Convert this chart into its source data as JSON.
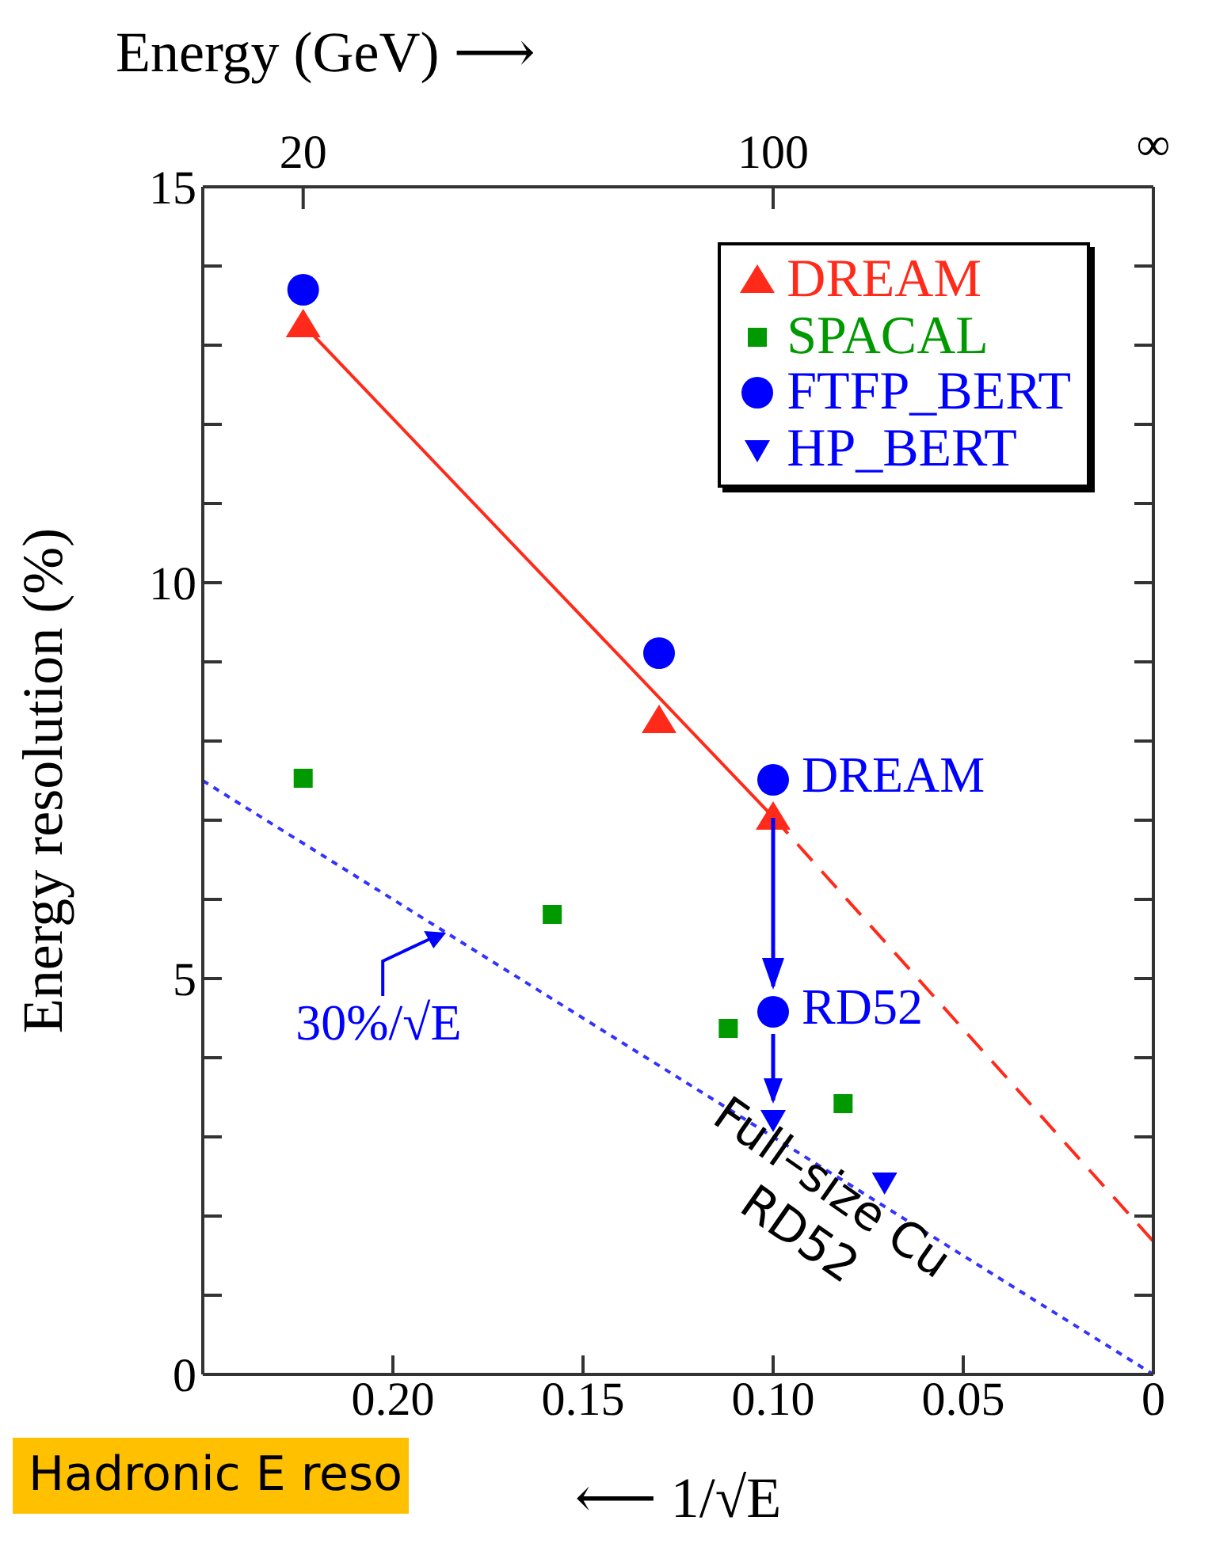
{
  "chart_data": {
    "type": "scatter",
    "xlabel": "⟵ 1/√E",
    "ylabel": "Energy resolution (%)",
    "x2label": "Energy (GeV) ⟶",
    "xlim": [
      0.25,
      0
    ],
    "xticks": [
      {
        "value": 0.2,
        "label": "0.20"
      },
      {
        "value": 0.15,
        "label": "0.15"
      },
      {
        "value": 0.1,
        "label": "0.10"
      },
      {
        "value": 0.05,
        "label": "0.05"
      },
      0
    ],
    "ylim": [
      0,
      15
    ],
    "yticks": [
      0,
      {
        "value": 1,
        "label": null
      },
      {
        "value": 2,
        "label": null
      },
      {
        "value": 3,
        "label": null
      },
      {
        "value": 4,
        "label": null
      },
      5,
      {
        "value": 6,
        "label": null
      },
      {
        "value": 7,
        "label": null
      },
      {
        "value": 8,
        "label": null
      },
      {
        "value": 9,
        "label": null
      },
      10,
      {
        "value": 11,
        "label": null
      },
      {
        "value": 12,
        "label": null
      },
      {
        "value": 13,
        "label": null
      },
      {
        "value": 14,
        "label": null
      },
      15
    ],
    "grid": false,
    "legend": "top right",
    "series": [
      {
        "name": "DREAM",
        "type": "scatter",
        "marker": "triangle",
        "color": "#ff2a1a",
        "x": [
          0.2236,
          0.13,
          0.1
        ],
        "values": [
          13.26,
          8.26,
          7.04
        ]
      },
      {
        "name": "SPACAL",
        "type": "scatter",
        "marker": "square",
        "color": "#009900",
        "x": [
          0.2236,
          0.1581,
          0.1118,
          0.0816
        ],
        "values": [
          7.53,
          5.81,
          4.37,
          3.42
        ]
      },
      {
        "name": "FTFP_BERT",
        "type": "scatter",
        "marker": "circle",
        "color": "#0000ff",
        "x": [
          0.2236,
          0.13,
          0.1,
          0.1
        ],
        "values": [
          13.7,
          9.11,
          7.51,
          4.58
        ]
      },
      {
        "name": "HP_BERT",
        "type": "scatter",
        "marker": "triangle-down",
        "color": "#0000ff",
        "x": [
          0.1,
          0.0707
        ],
        "values": [
          3.22,
          2.43
        ]
      },
      {
        "type": "line",
        "line_style": "solid",
        "color": "#ff2a1a",
        "x": [
          0.2236,
          0.1
        ],
        "values": [
          13.26,
          7.04
        ]
      },
      {
        "type": "line",
        "line_style": "dashed",
        "color": "#ff2a1a",
        "x": [
          0.1,
          0
        ],
        "values": [
          7.04,
          1.68
        ]
      },
      {
        "type": "line",
        "line_style": "dotted",
        "color": "#3333ff",
        "x": [
          0.25,
          0
        ],
        "values": [
          7.5,
          0
        ]
      }
    ],
    "annotations": [
      {
        "text": "20",
        "x": 0.2236
      },
      {
        "text": "100",
        "x": 0.1
      },
      {
        "text": "DREAM",
        "x": 0.1,
        "y": 7.51
      },
      {
        "text": "RD52",
        "x": 0.1,
        "y": 4.58
      },
      {
        "text": "30%/√E",
        "x": 0.186,
        "y": 5.58
      },
      "Full–size Cu RD52",
      "Hadronic E reso",
      "∞"
    ]
  }
}
